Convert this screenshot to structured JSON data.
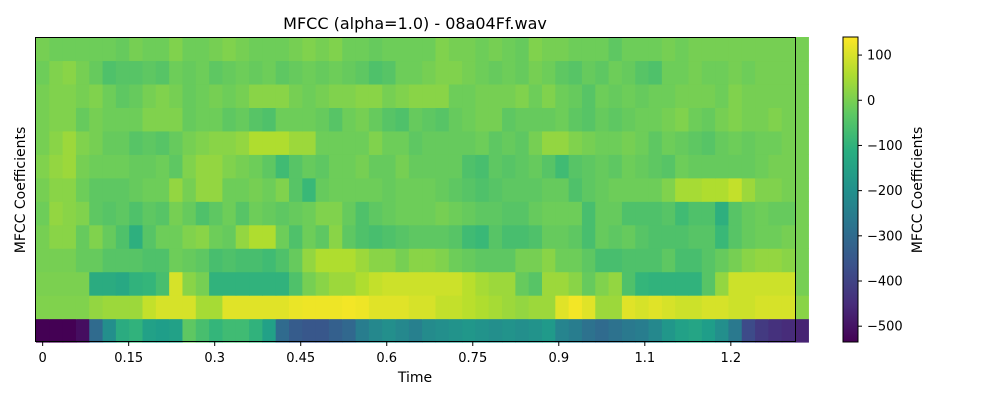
{
  "chart_data": {
    "type": "heatmap",
    "title": "MFCC (alpha=1.0) - 08a04Ff.wav",
    "xlabel": "Time",
    "ylabel": "MFCC Coefficients",
    "colorbar_label": "MFCC Coefficients",
    "x_ticks": [
      0,
      0.15,
      0.3,
      0.45,
      0.6,
      0.75,
      0.9,
      1.05,
      1.2
    ],
    "x_tick_labels": [
      "0",
      "0.15",
      "0.3",
      "0.45",
      "0.6",
      "0.75",
      "0.9",
      "1.1",
      "1.2"
    ],
    "xlim": [
      -0.0116,
      1.3119
    ],
    "colorbar_ticks": [
      100,
      0,
      -100,
      -200,
      -300,
      -400,
      -500
    ],
    "colorbar_tick_labels": [
      "100",
      "0",
      "−100",
      "−200",
      "−300",
      "−400",
      "−500"
    ],
    "clim": [
      -535,
      140
    ],
    "colormap": "viridis",
    "n_coefficients": 13,
    "n_frames": 58,
    "frame_step": 0.02322,
    "values": [
      [
        -535,
        -535,
        -535,
        -510,
        -300,
        -200,
        -120,
        -100,
        -150,
        -160,
        -150,
        -30,
        -60,
        -90,
        -70,
        -70,
        -100,
        -150,
        -300,
        -340,
        -350,
        -350,
        -330,
        -310,
        -250,
        -220,
        -200,
        -220,
        -240,
        -210,
        -200,
        -190,
        -180,
        -190,
        -200,
        -190,
        -200,
        -190,
        -170,
        -230,
        -250,
        -280,
        -300,
        -280,
        -260,
        -250,
        -220,
        -180,
        -150,
        -140,
        -160,
        -200,
        -260,
        -380,
        -420,
        -440,
        -450,
        -470
      ],
      [
        10,
        10,
        10,
        10,
        30,
        40,
        40,
        40,
        80,
        100,
        100,
        100,
        50,
        50,
        110,
        110,
        110,
        110,
        110,
        120,
        125,
        125,
        125,
        130,
        125,
        110,
        110,
        110,
        100,
        100,
        80,
        80,
        70,
        60,
        50,
        40,
        30,
        40,
        40,
        110,
        130,
        110,
        40,
        40,
        110,
        100,
        110,
        100,
        90,
        90,
        100,
        100,
        90,
        90,
        100,
        100,
        100,
        20
      ],
      [
        5,
        5,
        5,
        5,
        -120,
        -120,
        -130,
        -100,
        -90,
        -60,
        100,
        20,
        0,
        -100,
        -100,
        -100,
        -100,
        -100,
        -100,
        -50,
        0,
        20,
        40,
        40,
        60,
        80,
        90,
        90,
        90,
        90,
        90,
        90,
        70,
        50,
        40,
        40,
        -20,
        -40,
        40,
        40,
        20,
        -20,
        10,
        30,
        -50,
        -90,
        -100,
        -100,
        -100,
        -100,
        -40,
        30,
        90,
        90,
        90,
        90,
        90,
        0
      ],
      [
        0,
        0,
        0,
        -20,
        -20,
        -40,
        -40,
        -40,
        -50,
        -50,
        -10,
        -20,
        -30,
        -60,
        -50,
        -60,
        -60,
        -70,
        -50,
        -20,
        30,
        60,
        60,
        60,
        40,
        20,
        20,
        0,
        20,
        20,
        10,
        -10,
        -20,
        -30,
        -30,
        -30,
        0,
        0,
        20,
        -10,
        -10,
        -30,
        -60,
        -60,
        -50,
        -50,
        -50,
        -30,
        -60,
        -60,
        -40,
        -20,
        0,
        20,
        30,
        30,
        20,
        0
      ],
      [
        0,
        20,
        20,
        -20,
        10,
        -20,
        -50,
        -110,
        -40,
        -10,
        -10,
        10,
        20,
        -10,
        -20,
        30,
        60,
        60,
        -10,
        -50,
        -10,
        -30,
        20,
        -30,
        -50,
        -60,
        -50,
        -40,
        -30,
        -30,
        -30,
        -40,
        -70,
        -80,
        -40,
        -60,
        -60,
        -50,
        -20,
        -20,
        -30,
        -60,
        -20,
        -30,
        -20,
        -40,
        -50,
        -50,
        -50,
        -40,
        -40,
        -80,
        -40,
        -20,
        -10,
        -10,
        0,
        0
      ],
      [
        -10,
        30,
        20,
        10,
        -30,
        -40,
        -30,
        -50,
        -30,
        -40,
        0,
        -20,
        -50,
        -30,
        -10,
        -40,
        -10,
        -20,
        -30,
        -20,
        -10,
        10,
        10,
        -20,
        -50,
        -30,
        -20,
        -10,
        -10,
        -10,
        0,
        -10,
        -20,
        -30,
        -30,
        -40,
        -40,
        -20,
        -10,
        -10,
        -10,
        -60,
        -20,
        -20,
        -50,
        -50,
        -50,
        -40,
        -70,
        -50,
        -50,
        -110,
        -40,
        -20,
        -10,
        -20,
        -20,
        0
      ],
      [
        0,
        20,
        20,
        -10,
        -30,
        -30,
        -30,
        -20,
        -10,
        -10,
        30,
        0,
        30,
        30,
        -10,
        -10,
        0,
        -10,
        10,
        -40,
        -80,
        -20,
        -10,
        -10,
        -10,
        -10,
        -20,
        -10,
        -10,
        -10,
        -20,
        -30,
        -40,
        -50,
        -40,
        -30,
        -30,
        -30,
        -20,
        -20,
        -50,
        -30,
        -20,
        -10,
        -10,
        -10,
        -10,
        10,
        50,
        50,
        60,
        60,
        80,
        40,
        10,
        10,
        0,
        0
      ],
      [
        10,
        30,
        40,
        0,
        -10,
        -10,
        -10,
        -20,
        -20,
        -10,
        -30,
        10,
        30,
        30,
        10,
        0,
        -10,
        -30,
        -70,
        -40,
        -20,
        -30,
        -10,
        -10,
        0,
        -20,
        -20,
        0,
        -20,
        -20,
        -20,
        -20,
        -50,
        -60,
        -30,
        -40,
        -30,
        -20,
        -40,
        -70,
        -40,
        -30,
        -20,
        -30,
        -10,
        -20,
        -30,
        -40,
        -10,
        -20,
        -20,
        -20,
        -20,
        -20,
        -10,
        0,
        0,
        0
      ],
      [
        0,
        20,
        40,
        10,
        0,
        -20,
        -20,
        -40,
        -30,
        -40,
        -20,
        0,
        10,
        20,
        20,
        30,
        60,
        60,
        60,
        40,
        40,
        -10,
        -10,
        -10,
        -10,
        10,
        -10,
        -10,
        -30,
        -20,
        -20,
        -20,
        -20,
        -10,
        -30,
        -20,
        -30,
        0,
        30,
        30,
        10,
        0,
        -10,
        -10,
        0,
        -10,
        -30,
        -10,
        -20,
        -30,
        -40,
        -20,
        -10,
        -20,
        -10,
        -10,
        0,
        0
      ],
      [
        0,
        10,
        10,
        -20,
        0,
        -10,
        -10,
        -10,
        10,
        10,
        10,
        -20,
        -10,
        -10,
        -30,
        -20,
        -40,
        -50,
        -10,
        -10,
        -10,
        -20,
        -40,
        -10,
        0,
        -20,
        -40,
        -50,
        -20,
        -30,
        -40,
        -20,
        -10,
        0,
        0,
        -30,
        -20,
        -20,
        -20,
        -10,
        -30,
        -40,
        -20,
        -30,
        -20,
        -10,
        -10,
        0,
        10,
        -10,
        -20,
        0,
        10,
        0,
        0,
        10,
        0,
        0
      ],
      [
        0,
        10,
        10,
        0,
        10,
        -10,
        -30,
        -20,
        0,
        10,
        0,
        -20,
        -10,
        0,
        -10,
        0,
        20,
        20,
        20,
        0,
        -10,
        0,
        10,
        10,
        20,
        20,
        0,
        10,
        20,
        20,
        20,
        -10,
        -10,
        0,
        0,
        0,
        10,
        -10,
        10,
        -10,
        -20,
        -40,
        -10,
        -20,
        -10,
        -20,
        -10,
        -10,
        0,
        0,
        0,
        -10,
        10,
        0,
        0,
        0,
        0,
        0
      ],
      [
        -10,
        10,
        20,
        0,
        -20,
        -50,
        -40,
        -40,
        -30,
        -40,
        -10,
        -20,
        -10,
        -30,
        -20,
        -10,
        -20,
        -10,
        -30,
        -20,
        -10,
        -20,
        -10,
        -20,
        -30,
        -50,
        -40,
        -10,
        -10,
        0,
        10,
        10,
        0,
        -10,
        -20,
        -10,
        -20,
        0,
        -10,
        -30,
        -40,
        -20,
        -30,
        -10,
        -20,
        -40,
        -50,
        -10,
        -10,
        0,
        -10,
        -10,
        0,
        -10,
        0,
        0,
        0,
        0
      ],
      [
        0,
        -10,
        -10,
        -10,
        -10,
        -10,
        -20,
        0,
        -10,
        -10,
        10,
        -10,
        -10,
        0,
        10,
        0,
        -10,
        -10,
        -10,
        0,
        10,
        0,
        10,
        -10,
        -10,
        -20,
        -10,
        -10,
        -10,
        -10,
        10,
        0,
        0,
        -10,
        0,
        -10,
        -20,
        10,
        0,
        0,
        -10,
        -10,
        -10,
        -30,
        -10,
        -10,
        -10,
        0,
        -10,
        0,
        0,
        0,
        0,
        0,
        0,
        0,
        0,
        0
      ]
    ]
  }
}
